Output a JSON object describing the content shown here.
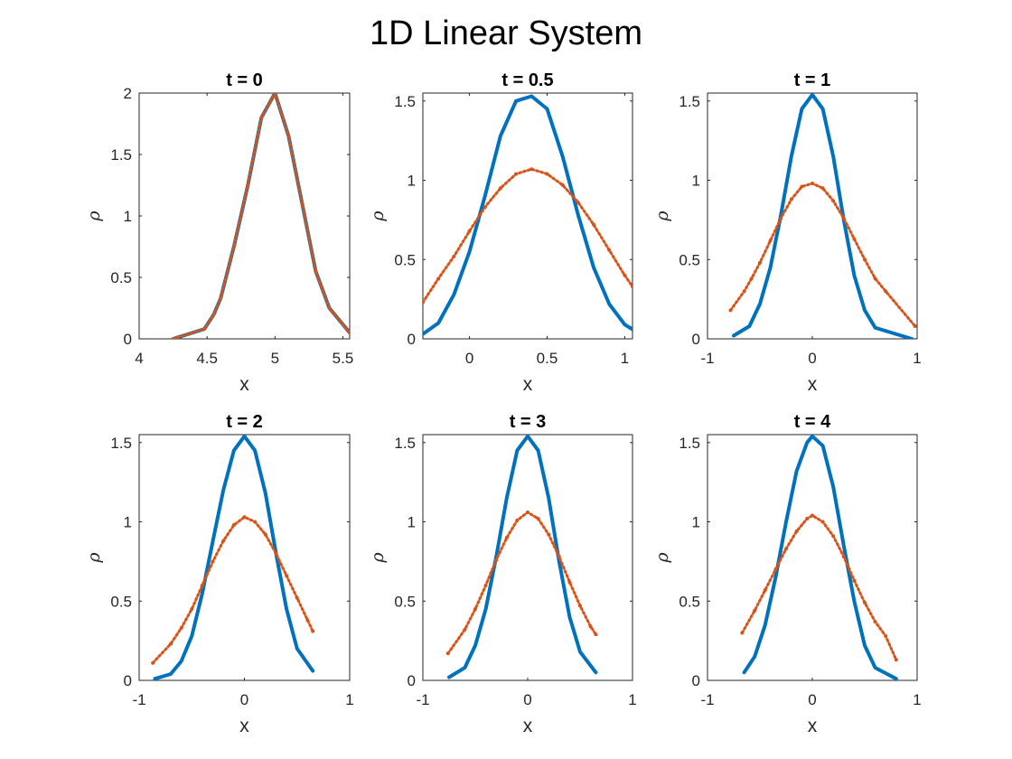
{
  "figure": {
    "title": "1D Linear System"
  },
  "colors": {
    "series_line": "#0072BD",
    "series_points": "#D95319"
  },
  "chart_data": [
    {
      "type": "line",
      "title": "t = 0",
      "xlabel": "x",
      "ylabel": "ρ",
      "xlim": [
        4,
        5.55
      ],
      "ylim": [
        0,
        2
      ],
      "xticks": [
        4,
        4.5,
        5,
        5.5
      ],
      "xtick_labels": [
        "4",
        "4.5",
        "5",
        "5.5"
      ],
      "yticks": [
        0,
        0.5,
        1,
        1.5,
        2
      ],
      "ytick_labels": [
        "0",
        "0.5",
        "1",
        "1.5",
        "2"
      ],
      "series": [
        {
          "kind": "line",
          "color": "#0072BD",
          "x": [
            4.25,
            4.48,
            4.55,
            4.6,
            4.7,
            4.8,
            4.9,
            5.0,
            5.1,
            5.2,
            5.3,
            5.4,
            5.55
          ],
          "y": [
            0,
            0.08,
            0.2,
            0.33,
            0.76,
            1.25,
            1.8,
            2.0,
            1.65,
            1.1,
            0.55,
            0.25,
            0.05
          ]
        },
        {
          "kind": "points",
          "color": "#D95319",
          "x": [
            4.25,
            4.48,
            4.55,
            4.6,
            4.7,
            4.8,
            4.9,
            5.0,
            5.1,
            5.2,
            5.3,
            5.4,
            5.55
          ],
          "y": [
            0,
            0.08,
            0.2,
            0.33,
            0.76,
            1.25,
            1.8,
            2.0,
            1.65,
            1.1,
            0.55,
            0.25,
            0.05
          ]
        }
      ]
    },
    {
      "type": "line",
      "title": "t = 0.5",
      "xlabel": "x",
      "ylabel": "ρ",
      "xlim": [
        -0.3,
        1.05
      ],
      "ylim": [
        0,
        1.55
      ],
      "xticks": [
        0,
        0.5,
        1
      ],
      "xtick_labels": [
        "0",
        "0.5",
        "1"
      ],
      "yticks": [
        0,
        0.5,
        1,
        1.5
      ],
      "ytick_labels": [
        "0",
        "0.5",
        "1",
        "1.5"
      ],
      "series": [
        {
          "kind": "line",
          "color": "#0072BD",
          "x": [
            -0.3,
            -0.2,
            -0.1,
            0.0,
            0.1,
            0.2,
            0.3,
            0.4,
            0.5,
            0.6,
            0.7,
            0.8,
            0.9,
            1.0,
            1.05
          ],
          "y": [
            0.03,
            0.1,
            0.28,
            0.55,
            0.9,
            1.28,
            1.5,
            1.53,
            1.45,
            1.15,
            0.78,
            0.45,
            0.22,
            0.09,
            0.06
          ]
        },
        {
          "kind": "points",
          "color": "#D95319",
          "x": [
            -0.3,
            -0.2,
            -0.1,
            0.0,
            0.1,
            0.2,
            0.3,
            0.4,
            0.5,
            0.6,
            0.7,
            0.8,
            0.9,
            1.0,
            1.05
          ],
          "y": [
            0.23,
            0.38,
            0.52,
            0.68,
            0.83,
            0.95,
            1.04,
            1.07,
            1.04,
            0.97,
            0.86,
            0.72,
            0.56,
            0.4,
            0.33
          ]
        }
      ]
    },
    {
      "type": "line",
      "title": "t = 1",
      "xlabel": "x",
      "ylabel": "ρ",
      "xlim": [
        -1,
        1
      ],
      "ylim": [
        0,
        1.55
      ],
      "xticks": [
        -1,
        0,
        1
      ],
      "xtick_labels": [
        "-1",
        "0",
        "1"
      ],
      "yticks": [
        0,
        0.5,
        1,
        1.5
      ],
      "ytick_labels": [
        "0",
        "0.5",
        "1",
        "1.5"
      ],
      "series": [
        {
          "kind": "line",
          "color": "#0072BD",
          "x": [
            -0.75,
            -0.6,
            -0.5,
            -0.4,
            -0.3,
            -0.2,
            -0.1,
            0.0,
            0.1,
            0.2,
            0.3,
            0.4,
            0.5,
            0.6,
            0.75,
            0.95
          ],
          "y": [
            0.02,
            0.08,
            0.22,
            0.45,
            0.78,
            1.15,
            1.45,
            1.54,
            1.45,
            1.15,
            0.75,
            0.4,
            0.18,
            0.07,
            0.04,
            0.0
          ]
        },
        {
          "kind": "points",
          "color": "#D95319",
          "x": [
            -0.78,
            -0.65,
            -0.58,
            -0.5,
            -0.4,
            -0.3,
            -0.2,
            -0.1,
            0.0,
            0.1,
            0.2,
            0.3,
            0.4,
            0.5,
            0.6,
            0.7,
            0.98
          ],
          "y": [
            0.18,
            0.3,
            0.38,
            0.48,
            0.62,
            0.76,
            0.88,
            0.96,
            0.98,
            0.95,
            0.87,
            0.76,
            0.63,
            0.5,
            0.38,
            0.3,
            0.08
          ]
        }
      ]
    },
    {
      "type": "line",
      "title": "t = 2",
      "xlabel": "x",
      "ylabel": "ρ",
      "xlim": [
        -1,
        1
      ],
      "ylim": [
        0,
        1.55
      ],
      "xticks": [
        -1,
        0,
        1
      ],
      "xtick_labels": [
        "-1",
        "0",
        "1"
      ],
      "yticks": [
        0,
        0.5,
        1,
        1.5
      ],
      "ytick_labels": [
        "0",
        "0.5",
        "1",
        "1.5"
      ],
      "series": [
        {
          "kind": "line",
          "color": "#0072BD",
          "x": [
            -0.85,
            -0.7,
            -0.6,
            -0.5,
            -0.4,
            -0.3,
            -0.2,
            -0.1,
            0.0,
            0.1,
            0.2,
            0.3,
            0.4,
            0.5,
            0.65
          ],
          "y": [
            0.01,
            0.04,
            0.12,
            0.28,
            0.55,
            0.88,
            1.2,
            1.45,
            1.54,
            1.45,
            1.18,
            0.8,
            0.45,
            0.2,
            0.06
          ]
        },
        {
          "kind": "points",
          "color": "#D95319",
          "x": [
            -0.87,
            -0.7,
            -0.6,
            -0.5,
            -0.4,
            -0.3,
            -0.2,
            -0.1,
            0.0,
            0.1,
            0.2,
            0.3,
            0.4,
            0.5,
            0.6,
            0.65
          ],
          "y": [
            0.11,
            0.23,
            0.33,
            0.45,
            0.6,
            0.75,
            0.88,
            0.98,
            1.03,
            1.0,
            0.92,
            0.8,
            0.66,
            0.52,
            0.38,
            0.31
          ]
        }
      ]
    },
    {
      "type": "line",
      "title": "t = 3",
      "xlabel": "x",
      "ylabel": "ρ",
      "xlim": [
        -1,
        1
      ],
      "ylim": [
        0,
        1.55
      ],
      "xticks": [
        -1,
        0,
        1
      ],
      "xtick_labels": [
        "-1",
        "0",
        "1"
      ],
      "yticks": [
        0,
        0.5,
        1,
        1.5
      ],
      "ytick_labels": [
        "0",
        "0.5",
        "1",
        "1.5"
      ],
      "series": [
        {
          "kind": "line",
          "color": "#0072BD",
          "x": [
            -0.75,
            -0.6,
            -0.5,
            -0.4,
            -0.3,
            -0.2,
            -0.1,
            0.0,
            0.1,
            0.2,
            0.3,
            0.4,
            0.5,
            0.65
          ],
          "y": [
            0.02,
            0.08,
            0.22,
            0.45,
            0.78,
            1.15,
            1.45,
            1.54,
            1.45,
            1.15,
            0.75,
            0.4,
            0.18,
            0.05
          ]
        },
        {
          "kind": "points",
          "color": "#D95319",
          "x": [
            -0.76,
            -0.6,
            -0.5,
            -0.4,
            -0.3,
            -0.2,
            -0.1,
            0.0,
            0.1,
            0.2,
            0.3,
            0.4,
            0.5,
            0.6,
            0.65
          ],
          "y": [
            0.17,
            0.32,
            0.45,
            0.6,
            0.76,
            0.9,
            1.01,
            1.06,
            1.02,
            0.92,
            0.78,
            0.62,
            0.47,
            0.34,
            0.29
          ]
        }
      ]
    },
    {
      "type": "line",
      "title": "t = 4",
      "xlabel": "x",
      "ylabel": "ρ",
      "xlim": [
        -1,
        1
      ],
      "ylim": [
        0,
        1.55
      ],
      "xticks": [
        -1,
        0,
        1
      ],
      "xtick_labels": [
        "-1",
        "0",
        "1"
      ],
      "yticks": [
        0,
        0.5,
        1,
        1.5
      ],
      "ytick_labels": [
        "0",
        "0.5",
        "1",
        "1.5"
      ],
      "series": [
        {
          "kind": "line",
          "color": "#0072BD",
          "x": [
            -0.65,
            -0.55,
            -0.45,
            -0.35,
            -0.25,
            -0.15,
            -0.05,
            0.0,
            0.1,
            0.2,
            0.3,
            0.4,
            0.5,
            0.6,
            0.8
          ],
          "y": [
            0.05,
            0.15,
            0.35,
            0.65,
            1.0,
            1.32,
            1.5,
            1.54,
            1.48,
            1.22,
            0.85,
            0.5,
            0.22,
            0.08,
            0.01
          ]
        },
        {
          "kind": "points",
          "color": "#D95319",
          "x": [
            -0.67,
            -0.55,
            -0.45,
            -0.35,
            -0.25,
            -0.15,
            -0.05,
            0.0,
            0.1,
            0.2,
            0.3,
            0.4,
            0.5,
            0.6,
            0.7,
            0.8
          ],
          "y": [
            0.3,
            0.44,
            0.57,
            0.7,
            0.83,
            0.94,
            1.02,
            1.04,
            1.0,
            0.91,
            0.78,
            0.63,
            0.49,
            0.37,
            0.28,
            0.13
          ]
        }
      ]
    }
  ]
}
